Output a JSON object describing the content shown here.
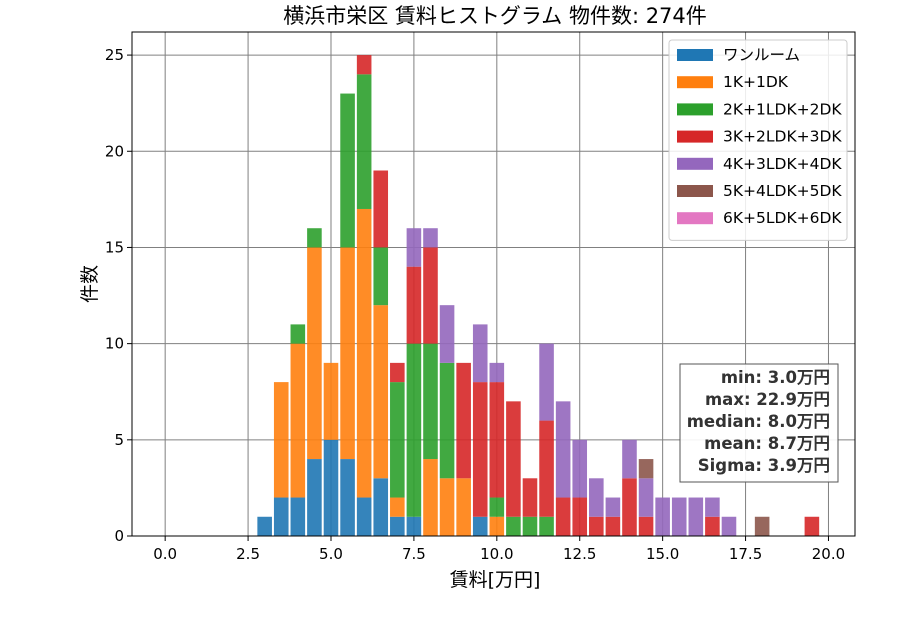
{
  "chart_data": {
    "type": "bar",
    "stacked": true,
    "title": "横浜市栄区 賃料ヒストグラム  物件数: 274件",
    "xlabel": "賃料[万円]",
    "ylabel": "件数",
    "xlim": [
      -1.0,
      20.8
    ],
    "ylim": [
      0,
      26.2
    ],
    "xticks": [
      0,
      2.5,
      5,
      7.5,
      10,
      12.5,
      15,
      17.5,
      20
    ],
    "xtick_labels": [
      "0.0",
      "2.5",
      "5.0",
      "7.5",
      "10.0",
      "12.5",
      "15.0",
      "17.5",
      "20.0"
    ],
    "yticks": [
      0,
      5,
      10,
      15,
      20,
      25
    ],
    "ytick_labels": [
      "0",
      "5",
      "10",
      "15",
      "20",
      "25"
    ],
    "grid": true,
    "legend_position": "top-right",
    "bin_width": 0.5,
    "bin_starts": [
      2.75,
      3.25,
      3.75,
      4.25,
      4.75,
      5.25,
      5.75,
      6.25,
      6.75,
      7.25,
      7.75,
      8.25,
      8.75,
      9.25,
      9.75,
      10.25,
      10.75,
      11.25,
      11.75,
      12.25,
      12.75,
      13.25,
      13.75,
      14.25,
      14.75,
      15.25,
      15.75,
      16.25,
      16.75,
      17.25,
      17.75,
      18.25,
      18.75,
      19.25
    ],
    "series": [
      {
        "name": "ワンルーム",
        "color": "#1f77b4",
        "values": [
          1,
          2,
          2,
          4,
          5,
          4,
          2,
          3,
          1,
          1,
          0,
          0,
          0,
          1,
          0,
          0,
          0,
          0,
          0,
          0,
          0,
          0,
          0,
          0,
          0,
          0,
          0,
          0,
          0,
          0,
          0,
          0,
          0,
          0
        ]
      },
      {
        "name": "1K+1DK",
        "color": "#ff7f0e",
        "values": [
          0,
          6,
          8,
          11,
          4,
          11,
          15,
          9,
          1,
          0,
          4,
          3,
          3,
          0,
          1,
          0,
          0,
          0,
          0,
          0,
          0,
          0,
          0,
          0,
          0,
          0,
          0,
          0,
          0,
          0,
          0,
          0,
          0,
          0
        ]
      },
      {
        "name": "2K+1LDK+2DK",
        "color": "#2ca02c",
        "values": [
          0,
          0,
          1,
          1,
          0,
          8,
          7,
          3,
          6,
          9,
          6,
          6,
          0,
          0,
          1,
          1,
          1,
          1,
          0,
          0,
          0,
          0,
          0,
          0,
          0,
          0,
          0,
          0,
          0,
          0,
          0,
          0,
          0,
          0
        ]
      },
      {
        "name": "3K+2LDK+3DK",
        "color": "#d62728",
        "values": [
          0,
          0,
          0,
          0,
          0,
          0,
          1,
          4,
          1,
          4,
          5,
          0,
          6,
          7,
          6,
          6,
          2,
          5,
          2,
          2,
          1,
          1,
          3,
          1,
          0,
          0,
          0,
          1,
          0,
          0,
          0,
          0,
          0,
          1
        ]
      },
      {
        "name": "4K+3LDK+4DK",
        "color": "#9467bd",
        "values": [
          0,
          0,
          0,
          0,
          0,
          0,
          0,
          0,
          0,
          2,
          1,
          3,
          0,
          3,
          1,
          0,
          0,
          4,
          5,
          3,
          2,
          1,
          2,
          2,
          2,
          2,
          2,
          1,
          1,
          0,
          0,
          0,
          0,
          0
        ]
      },
      {
        "name": "5K+4LDK+5DK",
        "color": "#8c564b",
        "values": [
          0,
          0,
          0,
          0,
          0,
          0,
          0,
          0,
          0,
          0,
          0,
          0,
          0,
          0,
          0,
          0,
          0,
          0,
          0,
          0,
          0,
          0,
          0,
          1,
          0,
          0,
          0,
          0,
          0,
          0,
          1,
          0,
          0,
          0
        ]
      },
      {
        "name": "6K+5LDK+6DK",
        "color": "#e377c2",
        "values": [
          0,
          0,
          0,
          0,
          0,
          0,
          0,
          0,
          0,
          0,
          0,
          0,
          0,
          0,
          0,
          0,
          0,
          0,
          0,
          0,
          0,
          0,
          0,
          0,
          0,
          0,
          0,
          0,
          0,
          0,
          0,
          0,
          0,
          0
        ]
      }
    ],
    "stats": {
      "min": "min: 3.0万円",
      "max": "max: 22.9万円",
      "median": "median: 8.0万円",
      "mean": "mean: 8.7万円",
      "sigma": "Sigma: 3.9万円"
    }
  }
}
